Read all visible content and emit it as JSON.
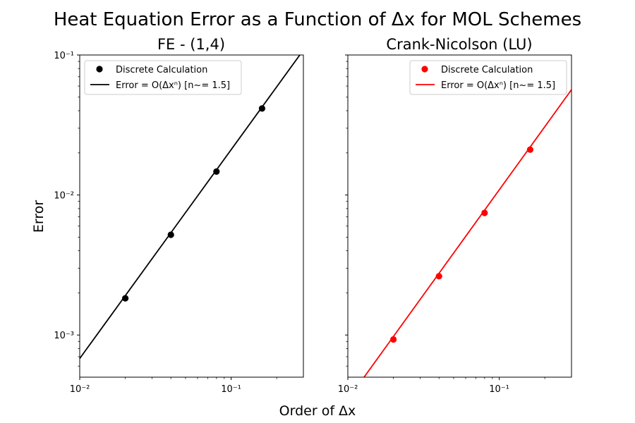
{
  "figure": {
    "suptitle": "Heat Equation Error as a Function of Δx for MOL Schemes",
    "xlabel": "Order of Δx",
    "ylabel": "Error"
  },
  "chart_data": [
    {
      "type": "line",
      "title": "FE - (1,4)",
      "xscale": "log",
      "yscale": "log",
      "xlim": [
        0.01,
        0.3
      ],
      "ylim": [
        0.0005,
        0.1
      ],
      "x_ticks": [
        {
          "value": 0.01,
          "label": "10⁻²"
        },
        {
          "value": 0.1,
          "label": "10⁻¹"
        }
      ],
      "y_ticks": [
        {
          "value": 0.001,
          "label": "10⁻³"
        },
        {
          "value": 0.01,
          "label": "10⁻²"
        },
        {
          "value": 0.1,
          "label": "10⁻¹"
        }
      ],
      "series": [
        {
          "name": "Discrete Calculation",
          "kind": "scatter",
          "color": "#000000",
          "x": [
            0.02,
            0.04,
            0.08,
            0.16
          ],
          "y": [
            0.00183,
            0.0052,
            0.0147,
            0.0415
          ]
        },
        {
          "name": "Error = O(Δxⁿ) [n~= 1.5]",
          "kind": "line",
          "color": "#000000",
          "x": [
            0.01,
            0.3
          ],
          "y": [
            0.00068,
            0.1085
          ]
        }
      ],
      "legend": "upper-left"
    },
    {
      "type": "line",
      "title": "Crank-Nicolson (LU)",
      "xscale": "log",
      "yscale": "log",
      "xlim": [
        0.01,
        0.3
      ],
      "ylim": [
        0.0005,
        0.1
      ],
      "x_ticks": [
        {
          "value": 0.01,
          "label": "10⁻²"
        },
        {
          "value": 0.1,
          "label": "10⁻¹"
        }
      ],
      "y_ticks": [],
      "series": [
        {
          "name": "Discrete Calculation",
          "kind": "scatter",
          "color": "#ff0000",
          "x": [
            0.02,
            0.04,
            0.08,
            0.16
          ],
          "y": [
            0.00093,
            0.00263,
            0.00745,
            0.0211
          ]
        },
        {
          "name": "Error = O(Δxⁿ) [n~= 1.5]",
          "kind": "line",
          "color": "#ff0000",
          "x": [
            0.0128,
            0.3
          ],
          "y": [
            0.0005,
            0.0565
          ]
        }
      ],
      "legend": "upper-right"
    }
  ]
}
